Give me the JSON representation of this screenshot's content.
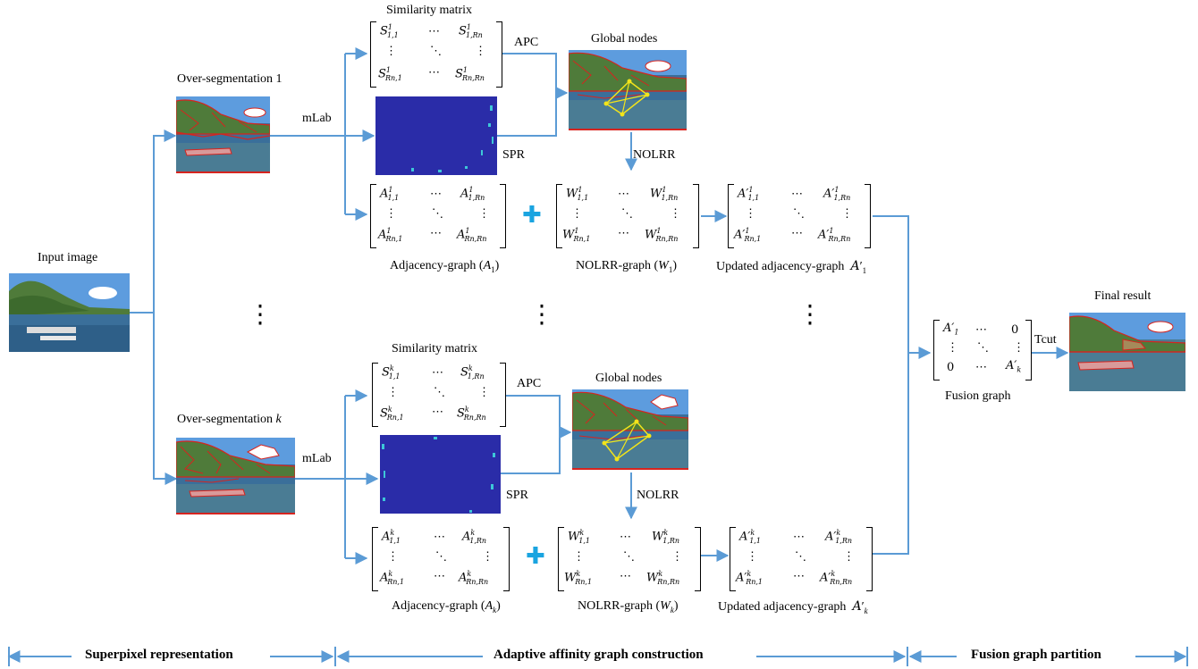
{
  "labels": {
    "input_image": "Input image",
    "overseg_1": "Over-segmentation 1",
    "overseg_k_prefix": "Over-segmentation ",
    "overseg_k_var": "k",
    "mlab": "mLab",
    "apc": "APC",
    "spr": "SPR",
    "nolrr": "NOLRR",
    "similarity_matrix": "Similarity matrix",
    "global_nodes": "Global nodes",
    "adjacency_graph_prefix": "Adjacency-graph (",
    "nolrr_graph_prefix": "NOLRR-graph (",
    "updated_adjacency_graph": "Updated adjacency-graph",
    "fusion_graph": "Fusion graph",
    "final_result": "Final result",
    "tcut": "Tcut"
  },
  "matrices": {
    "ellipsis_h": "⋯",
    "ellipsis_v": "⋮",
    "ellipsis_d": "⋱",
    "fusion_zero": "0"
  },
  "footer": {
    "superpixel": "Superpixel representation",
    "adaptive": "Adaptive affinity graph construction",
    "fusion": "Fusion graph partition"
  },
  "colors": {
    "arrow": "#5b9bd5",
    "plus": "#1aa4e0",
    "matrix_blue": "#2a2ca8",
    "segment_red": "#d6241f",
    "graph_yellow": "#f2e41a"
  },
  "icons": [
    "plus-icon",
    "vertical-ellipsis-icon"
  ]
}
